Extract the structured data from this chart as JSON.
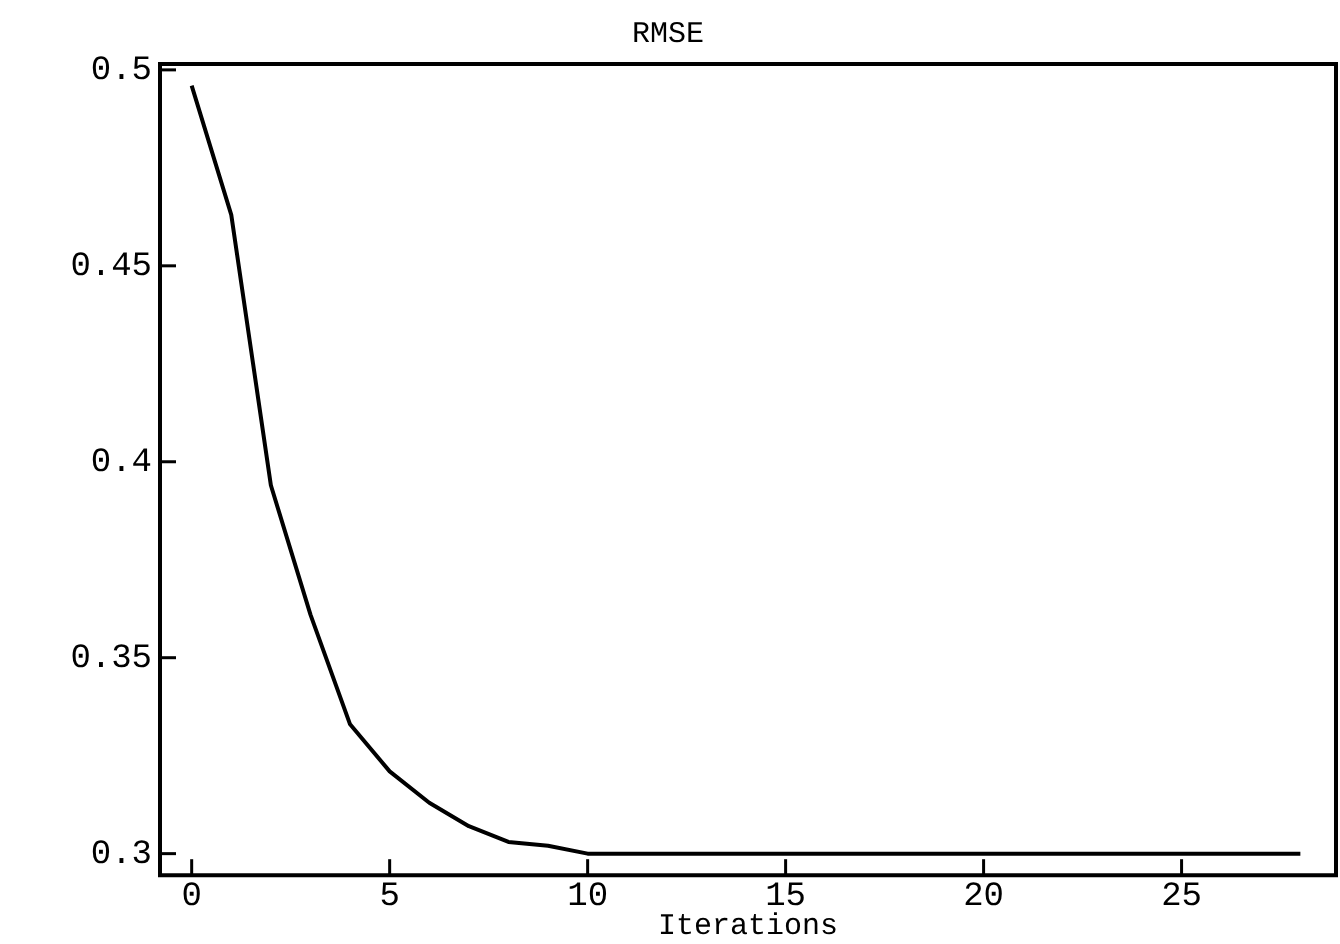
{
  "chart_data": {
    "type": "line",
    "title": "RMSE",
    "xlabel": "Iterations",
    "x": [
      0,
      1,
      2,
      3,
      4,
      5,
      6,
      7,
      8,
      9,
      10,
      11,
      12,
      13,
      14,
      15,
      16,
      17,
      18,
      19,
      20,
      21,
      22,
      23,
      24,
      25,
      26,
      27,
      28
    ],
    "series": [
      {
        "color": "#000000",
        "values": [
          0.496,
          0.463,
          0.394,
          0.361,
          0.333,
          0.321,
          0.313,
          0.307,
          0.303,
          0.302,
          0.3,
          0.3,
          0.3,
          0.3,
          0.3,
          0.3,
          0.3,
          0.3,
          0.3,
          0.3,
          0.3,
          0.3,
          0.3,
          0.3,
          0.3,
          0.3,
          0.3,
          0.3,
          0.3
        ]
      }
    ],
    "xlim": [
      -0.8,
      28.9
    ],
    "xticks": [
      0,
      5,
      10,
      15,
      20,
      25
    ],
    "ylim": [
      0.2945,
      0.5015
    ],
    "yticks": [
      0.3,
      0.35,
      0.4,
      0.45,
      0.5
    ],
    "grid": false,
    "legend": false,
    "marker": "none",
    "line_style": "solid"
  }
}
